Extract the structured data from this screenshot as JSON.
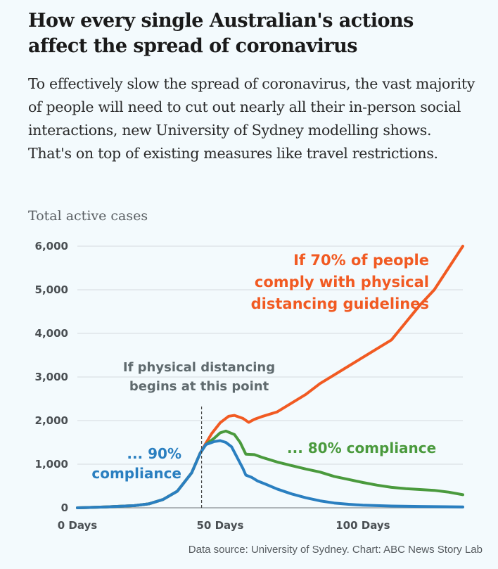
{
  "header": {
    "title": "How every single Australian's actions affect the spread of coronavirus",
    "subtitle": "To effectively slow the spread of coronavirus, the vast majority of people will need to cut out nearly all their in-person social interactions, new University of Sydney modelling shows. That's on top of existing measures like travel restrictions."
  },
  "footer": {
    "source": "Data source: University of Sydney. Chart: ABC News Story Lab"
  },
  "chart_data": {
    "type": "line",
    "title": "How every single Australian's actions affect the spread of coronavirus",
    "ylabel": "Total active cases",
    "xlabel": "",
    "xlim": [
      0,
      135
    ],
    "ylim": [
      0,
      6000
    ],
    "grid": true,
    "x_ticks": [
      {
        "value": 0,
        "label": "0 Days"
      },
      {
        "value": 50,
        "label": "50 Days"
      },
      {
        "value": 100,
        "label": "100 Days"
      }
    ],
    "y_ticks": [
      {
        "value": 0,
        "label": "0"
      },
      {
        "value": 1000,
        "label": "1,000"
      },
      {
        "value": 2000,
        "label": "2,000"
      },
      {
        "value": 3000,
        "label": "3,000"
      },
      {
        "value": 4000,
        "label": "4,000"
      },
      {
        "value": 5000,
        "label": "5,000"
      },
      {
        "value": 6000,
        "label": "6,000"
      }
    ],
    "marker": {
      "x": 43.5,
      "label_lines": [
        "If physical distancing",
        "begins at this point"
      ]
    },
    "series": [
      {
        "name": "70% compliance",
        "color": "#f15a22",
        "label_lines": [
          "If 70% of people",
          "comply with physical",
          "distancing guidelines"
        ],
        "x": [
          0,
          10,
          20,
          25,
          30,
          35,
          40,
          43,
          45,
          47,
          50,
          53,
          55,
          58,
          60,
          62,
          65,
          70,
          75,
          80,
          85,
          90,
          95,
          100,
          105,
          110,
          115,
          120,
          125,
          130,
          135
        ],
        "y": [
          0,
          20,
          50,
          90,
          190,
          380,
          800,
          1250,
          1480,
          1700,
          1950,
          2100,
          2120,
          2050,
          1960,
          2030,
          2100,
          2200,
          2400,
          2600,
          2850,
          3050,
          3250,
          3450,
          3650,
          3850,
          4250,
          4650,
          5000,
          5500,
          6000
        ]
      },
      {
        "name": "80% compliance",
        "color": "#4a9a3d",
        "label_lines": [
          "... 80% compliance"
        ],
        "x": [
          0,
          10,
          20,
          25,
          30,
          35,
          40,
          43,
          45,
          48,
          50,
          52,
          55,
          57,
          59,
          62,
          65,
          70,
          75,
          80,
          85,
          90,
          95,
          100,
          105,
          110,
          115,
          120,
          125,
          130,
          135
        ],
        "y": [
          0,
          20,
          50,
          90,
          190,
          380,
          800,
          1250,
          1450,
          1600,
          1720,
          1760,
          1680,
          1500,
          1230,
          1220,
          1150,
          1050,
          970,
          890,
          820,
          720,
          650,
          580,
          520,
          470,
          440,
          420,
          400,
          360,
          300
        ]
      },
      {
        "name": "90% compliance",
        "color": "#2a7fc0",
        "label_lines": [
          "... 90%",
          "compliance"
        ],
        "x": [
          0,
          10,
          20,
          25,
          30,
          35,
          40,
          43,
          45,
          48,
          50,
          52,
          54,
          56,
          58,
          59,
          61,
          63,
          66,
          70,
          75,
          80,
          85,
          90,
          95,
          100,
          110,
          120,
          135
        ],
        "y": [
          0,
          20,
          50,
          90,
          190,
          380,
          800,
          1250,
          1450,
          1520,
          1540,
          1500,
          1400,
          1150,
          900,
          750,
          700,
          620,
          540,
          430,
          320,
          230,
          160,
          110,
          80,
          60,
          40,
          30,
          20
        ]
      }
    ]
  }
}
